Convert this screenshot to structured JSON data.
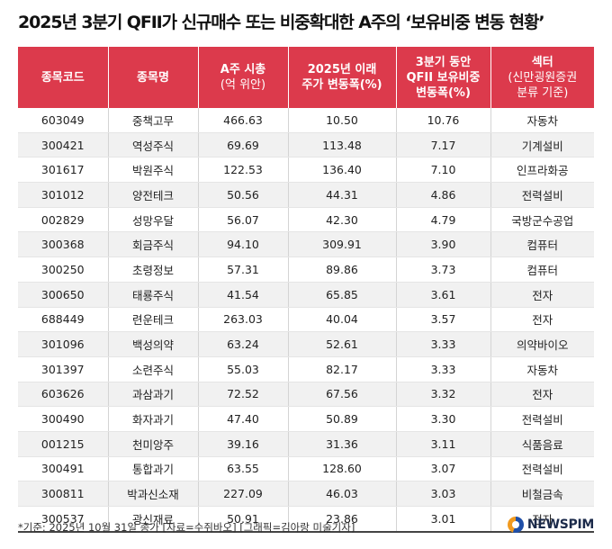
{
  "title": "2025년 3분기 QFII가 신규매수 또는 비중확대한 A주의 ‘보유비중 변동 현황’",
  "headers": [
    [
      "종목코드"
    ],
    [
      "종목명"
    ],
    [
      "A주 시총",
      "(억 위안)"
    ],
    [
      "2025년 이래",
      "주가 변동폭(%)"
    ],
    [
      "3분기 동안",
      "QFII 보유비중",
      "변동폭(%)"
    ],
    [
      "섹터",
      "(신만굉원증권",
      "분류 기준)"
    ]
  ],
  "rows": [
    [
      "603049",
      "중책고무",
      "466.63",
      "10.50",
      "10.76",
      "자동차"
    ],
    [
      "300421",
      "역성주식",
      "69.69",
      "113.48",
      "7.17",
      "기계설비"
    ],
    [
      "301617",
      "박원주식",
      "122.53",
      "136.40",
      "7.10",
      "인프라화공"
    ],
    [
      "301012",
      "양전테크",
      "50.56",
      "44.31",
      "4.86",
      "전력설비"
    ],
    [
      "002829",
      "성망우달",
      "56.07",
      "42.30",
      "4.79",
      "국방군수공업"
    ],
    [
      "300368",
      "회금주식",
      "94.10",
      "309.91",
      "3.90",
      "컴퓨터"
    ],
    [
      "300250",
      "초령정보",
      "57.31",
      "89.86",
      "3.73",
      "컴퓨터"
    ],
    [
      "300650",
      "태룡주식",
      "41.54",
      "65.85",
      "3.61",
      "전자"
    ],
    [
      "688449",
      "련운테크",
      "263.03",
      "40.04",
      "3.57",
      "전자"
    ],
    [
      "301096",
      "백성의약",
      "63.24",
      "52.61",
      "3.33",
      "의약바이오"
    ],
    [
      "301397",
      "소련주식",
      "55.03",
      "82.17",
      "3.33",
      "자동차"
    ],
    [
      "603626",
      "과삼과기",
      "72.52",
      "67.56",
      "3.32",
      "전자"
    ],
    [
      "300490",
      "화자과기",
      "47.40",
      "50.89",
      "3.30",
      "전력설비"
    ],
    [
      "001215",
      "천미앙주",
      "39.16",
      "31.36",
      "3.11",
      "식품음료"
    ],
    [
      "300491",
      "통합과기",
      "63.55",
      "128.60",
      "3.07",
      "전력설비"
    ],
    [
      "300811",
      "박과신소재",
      "227.09",
      "46.03",
      "3.03",
      "비철금속"
    ],
    [
      "300537",
      "광신재료",
      "50.91",
      "23.86",
      "3.01",
      "전자"
    ]
  ],
  "footer": "*기준: 2025년 10월 31일 종가 [자료=수쥐바오] [그래픽=김아랑 미술기자]",
  "logo": "NEWSPIM",
  "colors": {
    "header_bg": "#dc3a4c",
    "alt_row": "#f1f1f1"
  }
}
